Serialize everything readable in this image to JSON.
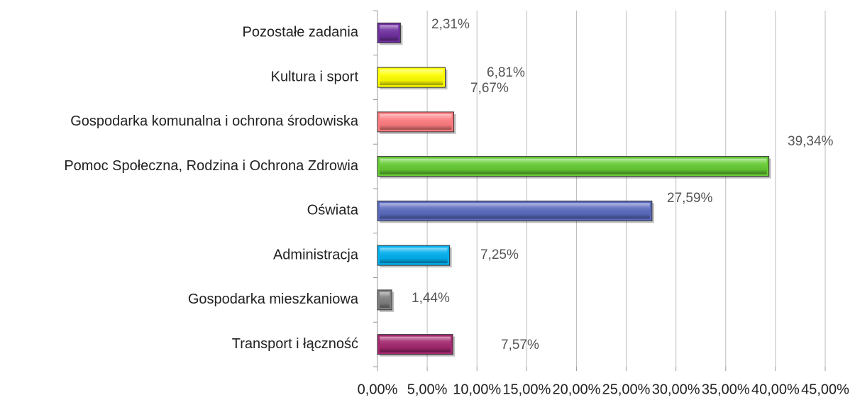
{
  "chart_data": {
    "type": "barh",
    "categories": [
      "Transport i łączność",
      "Gospodarka mieszkaniowa",
      "Administracja",
      "Oświata",
      "Pomoc Społeczna, Rodzina i Ochrona Zdrowia",
      "Gospodarka komunalna i ochrona środowiska",
      "Kultura i sport",
      "Pozostałe zadania"
    ],
    "values": [
      7.57,
      1.44,
      7.25,
      27.59,
      39.34,
      7.67,
      6.81,
      2.31
    ],
    "value_labels": [
      "7,57%",
      "1,44%",
      "7,25%",
      "27,59%",
      "39,34%",
      "7,67%",
      "6,81%",
      "2,31%"
    ],
    "colors": [
      "#a5286f",
      "#808080",
      "#00b0f0",
      "#5b6bc0",
      "#66cc33",
      "#ff7c80",
      "#ffff00",
      "#7030a0"
    ],
    "xlim": [
      0,
      45
    ],
    "xticks": [
      {
        "value": 0,
        "label": "0,00%"
      },
      {
        "value": 5,
        "label": "5,00%"
      },
      {
        "value": 10,
        "label": "10,00%"
      },
      {
        "value": 15,
        "label": "15,00%"
      },
      {
        "value": 20,
        "label": "20,00%"
      },
      {
        "value": 25,
        "label": "25,00%"
      },
      {
        "value": 30,
        "label": "30,00%"
      },
      {
        "value": 35,
        "label": "35,00%"
      },
      {
        "value": 40,
        "label": "40,00%"
      },
      {
        "value": 45,
        "label": "45,00%"
      }
    ],
    "grid": true
  }
}
